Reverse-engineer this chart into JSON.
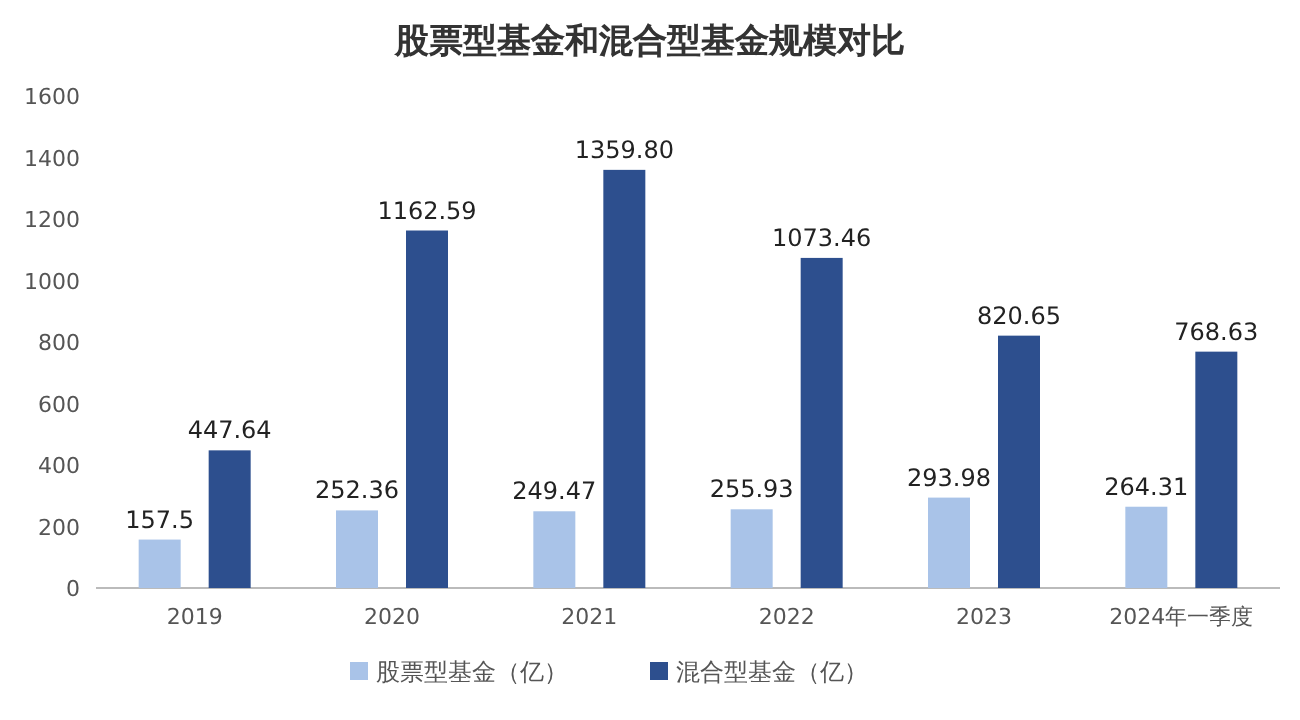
{
  "chart_data": {
    "type": "bar",
    "title": "股票型基金和混合型基金规模对比",
    "categories": [
      "2019",
      "2020",
      "2021",
      "2022",
      "2023",
      "2024年一季度"
    ],
    "series": [
      {
        "name": "股票型基金（亿）",
        "color": "#a9c3e8",
        "values": [
          157.5,
          252.36,
          249.47,
          255.93,
          293.98,
          264.31
        ],
        "value_labels": [
          "157.5",
          "252.36",
          "249.47",
          "255.93",
          "293.98",
          "264.31"
        ]
      },
      {
        "name": "混合型基金（亿）",
        "color": "#2d4f8e",
        "values": [
          447.64,
          1162.59,
          1359.8,
          1073.46,
          820.65,
          768.63
        ],
        "value_labels": [
          "447.64",
          "1162.59",
          "1359.80",
          "1073.46",
          "820.65",
          "768.63"
        ]
      }
    ],
    "ylim": [
      0,
      1600
    ],
    "yticks": [
      0,
      200,
      400,
      600,
      800,
      1000,
      1200,
      1400,
      1600
    ],
    "legend": "bottom"
  }
}
